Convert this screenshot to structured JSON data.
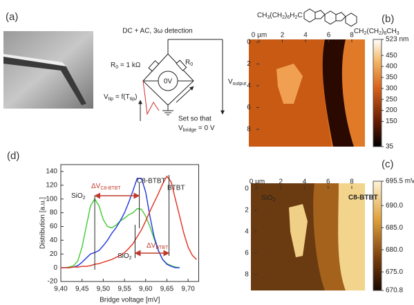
{
  "panel_labels": [
    "(a)",
    "(b)",
    "(c)",
    "(d)"
  ],
  "diagram": {
    "title": "DC + AC, 3ω detection",
    "r0_value": [
      "R",
      "0",
      " = 1 kΩ"
    ],
    "r0": [
      "R",
      "0"
    ],
    "meter": "0V",
    "v_tip": [
      "V",
      "tip",
      " = f(T",
      "tip",
      ")"
    ],
    "set_note": "Set so that",
    "v_bridge": [
      "V",
      "bridge",
      " = 0 V"
    ],
    "v_output": [
      "V",
      "output"
    ]
  },
  "molecule": {
    "left_chain": [
      "CH",
      "3",
      "(CH",
      "2",
      ")",
      "6",
      "H",
      "2",
      "C"
    ],
    "right_chain": [
      "CH",
      "2",
      "(CH",
      "2",
      ")",
      "6",
      "CH",
      "3"
    ]
  },
  "afm_b": {
    "xticks": [
      {
        "value": 0,
        "label": "0 µm"
      },
      2,
      4,
      6,
      8
    ],
    "yticks": [
      0,
      2,
      4,
      6,
      8
    ],
    "clim": [
      35,
      523
    ],
    "cticks": [
      {
        "value": 523,
        "label": "523 nm"
      },
      450,
      400,
      350,
      300,
      250,
      200,
      150,
      35
    ]
  },
  "afm_c": {
    "xticks": [
      {
        "value": 0,
        "label": "0 µm"
      },
      2,
      4,
      6,
      8
    ],
    "yticks": [
      0,
      2,
      4,
      6,
      8
    ],
    "clim": [
      670.8,
      695.5
    ],
    "cticks": [
      {
        "value": 695.5,
        "label": "695.5 mV"
      },
      {
        "value": 690,
        "label": "690.0"
      },
      {
        "value": 685,
        "label": "685.0"
      },
      {
        "value": 680,
        "label": "680.0"
      },
      {
        "value": 675,
        "label": "675.0"
      },
      {
        "value": 670.8,
        "label": "670.8"
      }
    ],
    "labels": [
      [
        "SiO",
        "2"
      ],
      "C8-BTBT"
    ]
  },
  "chart_data": {
    "type": "line",
    "x_label": "Bridge voltage [mV]",
    "y_label": "Distribution [a.u.]",
    "x": [
      9.4,
      9.41,
      9.42,
      9.43,
      9.44,
      9.45,
      9.46,
      9.47,
      9.48,
      9.49,
      9.5,
      9.51,
      9.52,
      9.53,
      9.54,
      9.55,
      9.56,
      9.57,
      9.58,
      9.59,
      9.6,
      9.61,
      9.62,
      9.63,
      9.64,
      9.65,
      9.66,
      9.67,
      9.68,
      9.69,
      9.7,
      9.71,
      9.72
    ],
    "series": [
      {
        "color": "#4ccc3c",
        "values": [
          0,
          0,
          1,
          3,
          10,
          30,
          60,
          90,
          100,
          90,
          70,
          60,
          58,
          62,
          68,
          72,
          77,
          80,
          86,
          85,
          75,
          60,
          42,
          25,
          12,
          6,
          3,
          1,
          0,
          null,
          null,
          null,
          null
        ]
      },
      {
        "color": "#2a3fe0",
        "values": [
          0,
          0,
          0,
          1,
          3,
          8,
          14,
          20,
          22,
          25,
          32,
          40,
          50,
          58,
          68,
          80,
          95,
          112,
          130,
          130,
          110,
          75,
          45,
          25,
          12,
          5,
          2,
          0,
          0,
          null,
          null,
          null,
          null
        ]
      },
      {
        "color": "#e03a2a",
        "values": [
          0,
          0,
          0,
          1,
          1,
          2,
          2,
          3,
          5,
          6,
          8,
          10,
          12,
          15,
          18,
          22,
          28,
          35,
          45,
          55,
          68,
          82,
          95,
          108,
          122,
          133,
          125,
          100,
          75,
          50,
          30,
          18,
          12
        ]
      }
    ],
    "xlim": [
      9.4,
      9.725
    ],
    "ylim": [
      -20,
      150
    ],
    "xticks": [
      {
        "value": 9.4,
        "label": "9,40"
      },
      {
        "value": 9.45,
        "label": "9,45"
      },
      {
        "value": 9.5,
        "label": "9,50"
      },
      {
        "value": 9.55,
        "label": "9,55"
      },
      {
        "value": 9.6,
        "label": "9,60"
      },
      {
        "value": 9.65,
        "label": "9,65"
      },
      {
        "value": 9.7,
        "label": "9,70"
      }
    ],
    "yticks": [
      -20,
      0,
      20,
      40,
      60,
      80,
      100,
      120,
      140
    ],
    "vlines": [
      9.48,
      9.585,
      9.575,
      9.655
    ],
    "annotations": [
      {
        "text": [
          "SiO",
          "2"
        ],
        "color": "#222"
      },
      {
        "text": [
          "ΔV",
          "C8-BTBT"
        ],
        "color": "#c0392b"
      },
      {
        "text": "C8-BTBT",
        "color": "#222"
      },
      {
        "text": "BTBT",
        "color": "#222"
      },
      {
        "text": [
          "SiO",
          "2"
        ],
        "color": "#222"
      },
      {
        "text": [
          "ΔV",
          "BTBT"
        ],
        "color": "#c0392b"
      }
    ]
  }
}
